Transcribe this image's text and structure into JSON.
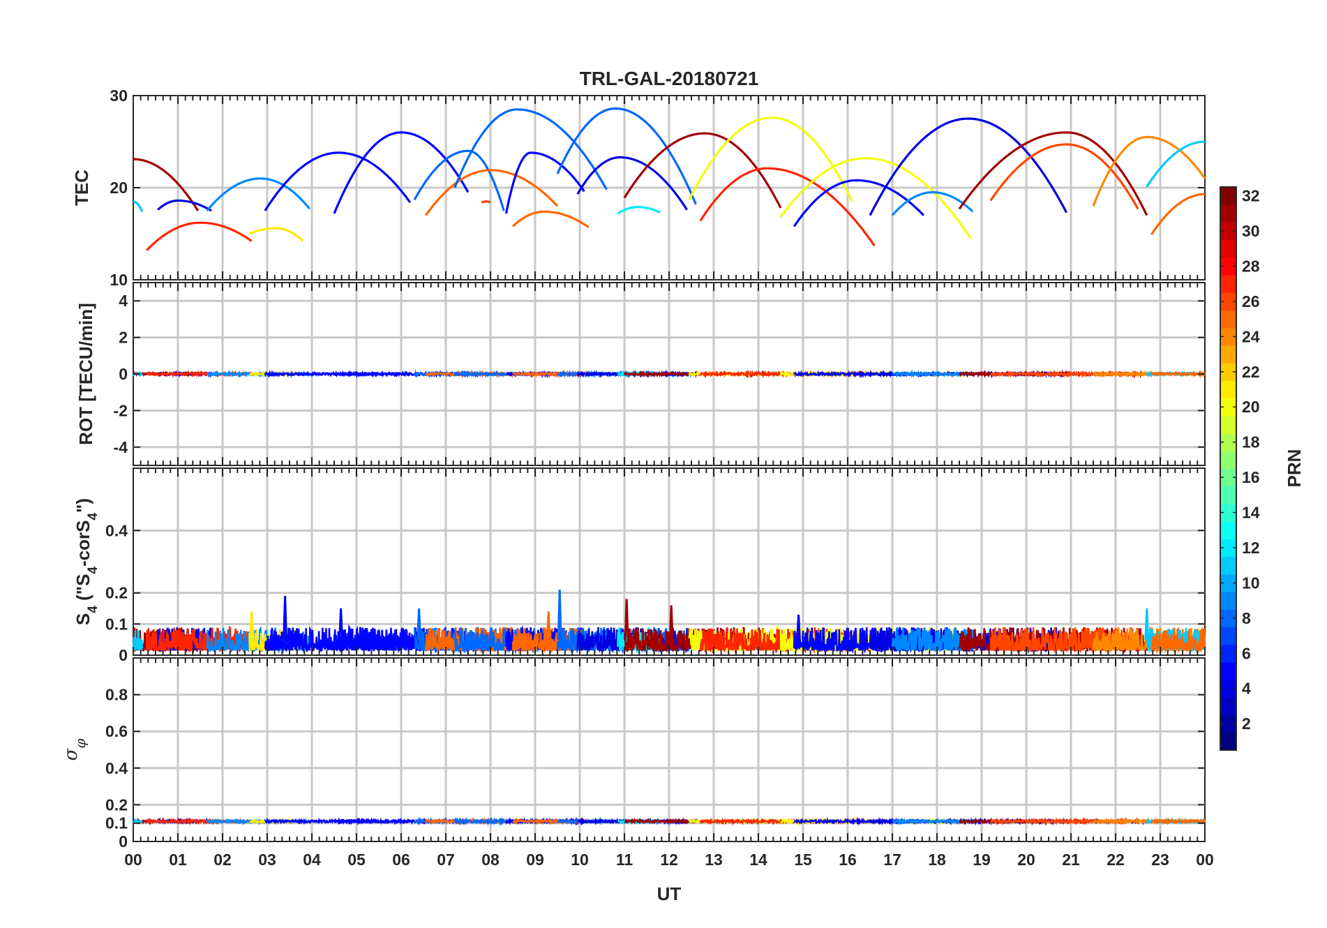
{
  "chart_data": {
    "type": "line",
    "title": "TRL-GAL-20180721",
    "xlabel": "UT",
    "x_tick_labels": [
      "00",
      "01",
      "02",
      "03",
      "04",
      "05",
      "06",
      "07",
      "08",
      "09",
      "10",
      "11",
      "12",
      "13",
      "14",
      "15",
      "16",
      "17",
      "18",
      "19",
      "20",
      "21",
      "22",
      "23",
      "00"
    ],
    "xlim": [
      0,
      24
    ],
    "grid": true,
    "colorbar": {
      "label": "PRN",
      "colormap": "jet",
      "range": [
        1,
        32
      ],
      "tick_labels": [
        "2",
        "4",
        "6",
        "8",
        "10",
        "12",
        "14",
        "16",
        "18",
        "20",
        "22",
        "24",
        "26",
        "28",
        "30",
        "32"
      ]
    },
    "panels": [
      {
        "id": "tec",
        "ylabel": "TEC",
        "ylim": [
          10,
          30
        ],
        "y_tick_labels": [
          "10",
          "20",
          "30"
        ],
        "arcs": [
          {
            "prn": 31,
            "start": 0.0,
            "end": 1.45,
            "peak_t": 0.0,
            "peak": 23.1,
            "start_v": 23.1,
            "end_v": 17.5
          },
          {
            "prn": 11,
            "start": 0.0,
            "end": 0.2,
            "peak_t": 0.0,
            "peak": 18.5,
            "start_v": 18.5,
            "end_v": 17.4
          },
          {
            "prn": 4,
            "start": 0.55,
            "end": 1.75,
            "peak_t": 1.0,
            "peak": 18.6,
            "start_v": 17.6,
            "end_v": 17.5
          },
          {
            "prn": 27,
            "start": 0.3,
            "end": 2.65,
            "peak_t": 1.5,
            "peak": 16.2,
            "start_v": 13.2,
            "end_v": 14.2
          },
          {
            "prn": 9,
            "start": 1.65,
            "end": 3.95,
            "peak_t": 2.85,
            "peak": 21.0,
            "start_v": 17.5,
            "end_v": 17.7
          },
          {
            "prn": 21,
            "start": 2.6,
            "end": 3.8,
            "peak_t": 3.2,
            "peak": 15.6,
            "start_v": 15.0,
            "end_v": 14.2
          },
          {
            "prn": 5,
            "start": 2.95,
            "end": 6.2,
            "peak_t": 4.6,
            "peak": 23.8,
            "start_v": 17.5,
            "end_v": 18.4
          },
          {
            "prn": 5,
            "start": 4.5,
            "end": 7.5,
            "peak_t": 6.0,
            "peak": 26.0,
            "start_v": 17.2,
            "end_v": 19.5
          },
          {
            "prn": 8,
            "start": 6.3,
            "end": 8.3,
            "peak_t": 7.5,
            "peak": 24.0,
            "start_v": 18.7,
            "end_v": 17.5
          },
          {
            "prn": 25,
            "start": 6.55,
            "end": 9.5,
            "peak_t": 8.0,
            "peak": 21.9,
            "start_v": 17.0,
            "end_v": 18.0
          },
          {
            "prn": 26,
            "start": 7.8,
            "end": 8.0,
            "peak_t": 7.9,
            "peak": 18.5,
            "start_v": 18.4,
            "end_v": 18.4
          },
          {
            "prn": 8,
            "start": 7.2,
            "end": 10.6,
            "peak_t": 8.6,
            "peak": 28.5,
            "start_v": 20.0,
            "end_v": 19.8
          },
          {
            "prn": 5,
            "start": 8.35,
            "end": 10.1,
            "peak_t": 8.9,
            "peak": 23.8,
            "start_v": 17.2,
            "end_v": 19.6
          },
          {
            "prn": 25,
            "start": 8.5,
            "end": 10.2,
            "peak_t": 9.2,
            "peak": 17.4,
            "start_v": 15.8,
            "end_v": 15.7
          },
          {
            "prn": 8,
            "start": 9.5,
            "end": 12.6,
            "peak_t": 10.8,
            "peak": 28.6,
            "start_v": 21.5,
            "end_v": 18.2
          },
          {
            "prn": 4,
            "start": 9.95,
            "end": 12.4,
            "peak_t": 10.9,
            "peak": 23.3,
            "start_v": 19.3,
            "end_v": 17.6
          },
          {
            "prn": 12,
            "start": 10.85,
            "end": 11.8,
            "peak_t": 11.3,
            "peak": 17.9,
            "start_v": 17.2,
            "end_v": 17.3
          },
          {
            "prn": 31,
            "start": 11.0,
            "end": 14.5,
            "peak_t": 12.8,
            "peak": 25.9,
            "start_v": 18.9,
            "end_v": 17.8
          },
          {
            "prn": 20,
            "start": 12.45,
            "end": 16.1,
            "peak_t": 14.3,
            "peak": 27.6,
            "start_v": 18.7,
            "end_v": 18.5
          },
          {
            "prn": 27,
            "start": 12.7,
            "end": 16.6,
            "peak_t": 14.2,
            "peak": 22.1,
            "start_v": 16.4,
            "end_v": 13.7
          },
          {
            "prn": 20,
            "start": 14.5,
            "end": 18.75,
            "peak_t": 16.4,
            "peak": 23.2,
            "start_v": 16.8,
            "end_v": 14.5
          },
          {
            "prn": 5,
            "start": 14.8,
            "end": 17.7,
            "peak_t": 16.2,
            "peak": 20.8,
            "start_v": 15.8,
            "end_v": 17.0
          },
          {
            "prn": 4,
            "start": 16.5,
            "end": 20.9,
            "peak_t": 18.7,
            "peak": 27.5,
            "start_v": 17.0,
            "end_v": 17.3
          },
          {
            "prn": 9,
            "start": 17.0,
            "end": 18.8,
            "peak_t": 17.9,
            "peak": 19.5,
            "start_v": 17.0,
            "end_v": 17.4
          },
          {
            "prn": 31,
            "start": 18.5,
            "end": 22.7,
            "peak_t": 20.9,
            "peak": 26.0,
            "start_v": 17.7,
            "end_v": 17.0
          },
          {
            "prn": 26,
            "start": 19.2,
            "end": 22.5,
            "peak_t": 20.9,
            "peak": 24.7,
            "start_v": 18.6,
            "end_v": 17.7
          },
          {
            "prn": 24,
            "start": 21.5,
            "end": 24.0,
            "peak_t": 22.7,
            "peak": 25.5,
            "start_v": 18.0,
            "end_v": 21.0
          },
          {
            "prn": 11,
            "start": 22.7,
            "end": 24.0,
            "peak_t": 24.0,
            "peak": 25.0,
            "start_v": 20.1,
            "end_v": 25.0
          },
          {
            "prn": 25,
            "start": 22.8,
            "end": 24.0,
            "peak_t": 24.0,
            "peak": 19.3,
            "start_v": 14.9,
            "end_v": 19.3
          }
        ]
      },
      {
        "id": "rot",
        "ylabel": "ROT [TECU/min]",
        "ylim": [
          -5,
          5
        ],
        "y_tick_labels": [
          "-4",
          "-2",
          "0",
          "2",
          "4"
        ],
        "baseline": 0,
        "noise": 0.06
      },
      {
        "id": "s4",
        "ylabel": "S4 (\"S4-corS4\")",
        "ylabel_parts": {
          "main": "S",
          "sub": "4",
          "open": " (\"S",
          "sub2": "4",
          "mid": "-corS",
          "sub3": "4",
          "close": "\")"
        },
        "ylim": [
          0,
          0.6
        ],
        "y_tick_labels": [
          "0",
          "0.1",
          "0.2",
          "0.4"
        ],
        "typical_range": [
          0.0,
          0.1
        ],
        "spikes": [
          {
            "t": 3.4,
            "v": 0.19
          },
          {
            "t": 9.55,
            "v": 0.21
          },
          {
            "t": 11.05,
            "v": 0.18
          },
          {
            "t": 12.05,
            "v": 0.16
          },
          {
            "t": 22.7,
            "v": 0.15
          },
          {
            "t": 9.3,
            "v": 0.14
          },
          {
            "t": 2.65,
            "v": 0.14
          },
          {
            "t": 14.9,
            "v": 0.13
          },
          {
            "t": 4.65,
            "v": 0.15
          },
          {
            "t": 6.4,
            "v": 0.15
          }
        ]
      },
      {
        "id": "sigma",
        "ylabel": "σφ",
        "ylabel_parts": {
          "main": "σ",
          "sub": "φ"
        },
        "ylim": [
          0,
          1
        ],
        "y_tick_labels": [
          "0",
          "0.1",
          "0.2",
          "0.4",
          "0.6",
          "0.8"
        ],
        "baseline": 0.11
      }
    ]
  }
}
